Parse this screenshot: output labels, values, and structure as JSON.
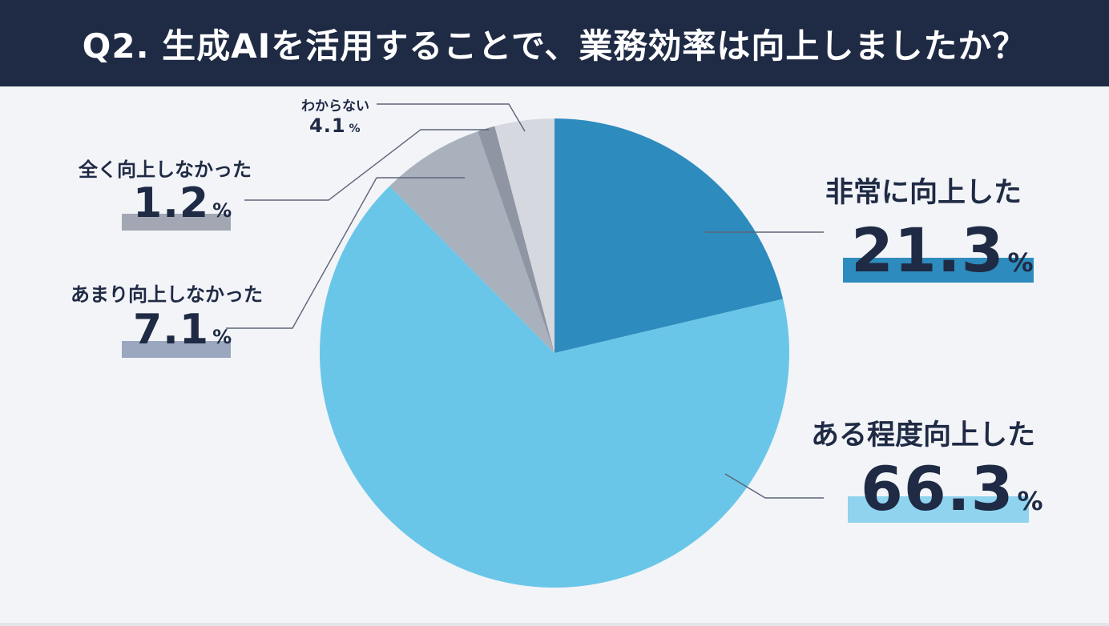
{
  "title": "Q2. 生成AIを活用することで、業務効率は向上しましたか？",
  "percent_sign": "%",
  "chart_data": {
    "type": "pie",
    "title": "Q2. 生成AIを活用することで、業務効率は向上しましたか？",
    "start": "12 o'clock",
    "direction": "clockwise",
    "unit": "%",
    "slices": [
      {
        "label": "非常に向上した",
        "value": 21.3,
        "value_text": "21.3",
        "color": "#2e8bbd"
      },
      {
        "label": "ある程度向上した",
        "value": 66.3,
        "value_text": "66.3",
        "color": "#6ac6e8"
      },
      {
        "label": "あまり向上しなかった",
        "value": 7.1,
        "value_text": "7.1",
        "color": "#a9b1bd"
      },
      {
        "label": "全く向上しなかった",
        "value": 1.2,
        "value_text": "1.2",
        "color": "#8f95a3"
      },
      {
        "label": "わからない",
        "value": 4.1,
        "value_text": "4.1",
        "color": "#d5d8de"
      }
    ],
    "highlight_colors": [
      "#2e8bbd",
      "#8fd3ef",
      "#9aa7bf",
      "#a2a7b3",
      ""
    ]
  }
}
